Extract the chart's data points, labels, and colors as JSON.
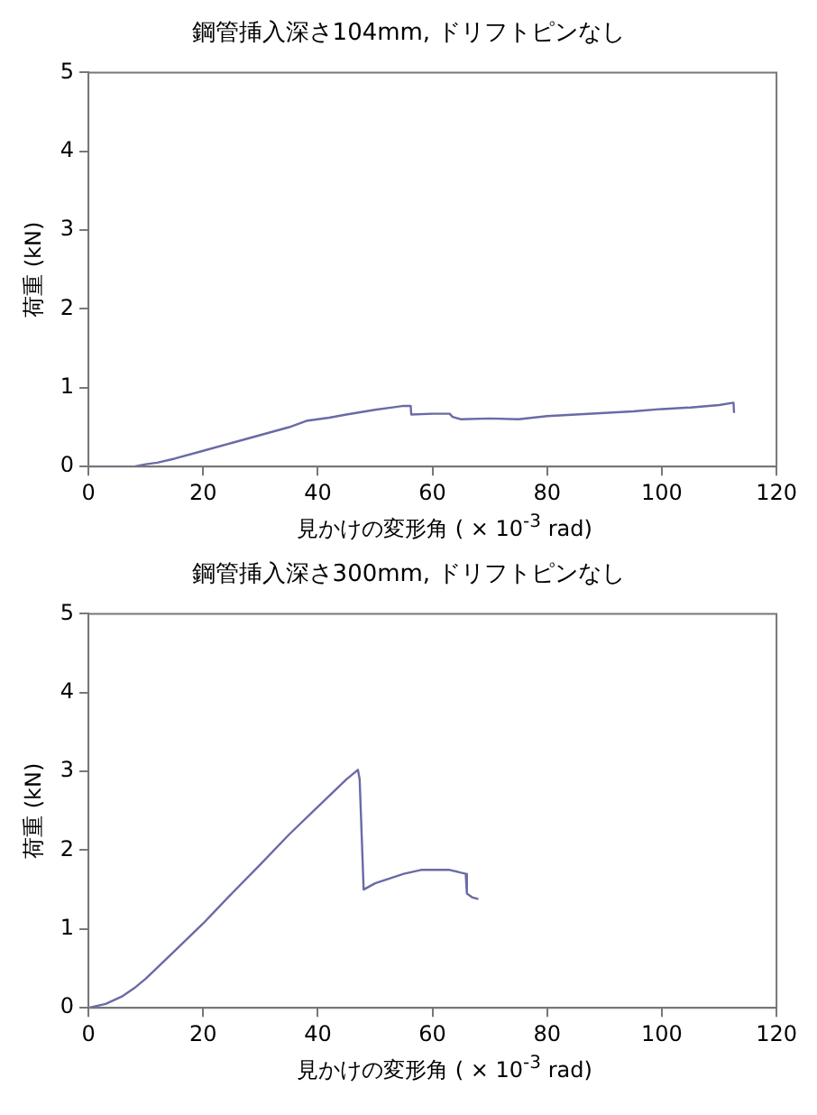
{
  "chart_data": [
    {
      "type": "line",
      "title": "鋼管挿入深さ104mm, ドリフトピンなし",
      "xlabel": "見かけの変形角 ( × 10$^{-3}$ rad)",
      "ylabel": "荷重 (kN)",
      "xlim": [
        0,
        120
      ],
      "xticks": [
        0,
        20,
        40,
        60,
        80,
        100,
        120
      ],
      "ylim": [
        0,
        5
      ],
      "yticks": [
        0,
        1,
        2,
        3,
        4,
        5
      ],
      "grid": false,
      "legend": false,
      "marker": "none",
      "series": [
        {
          "color": "#6a6aa6",
          "x": [
            0,
            8,
            10,
            12,
            15,
            20,
            25,
            30,
            35,
            38,
            42,
            45,
            50,
            53,
            55,
            56.2,
            56.3,
            60,
            63,
            63.5,
            65,
            70,
            75,
            80,
            85,
            90,
            95,
            100,
            105,
            110,
            112.5,
            112.6
          ],
          "values": [
            0,
            0,
            0.03,
            0.05,
            0.1,
            0.2,
            0.3,
            0.4,
            0.5,
            0.58,
            0.62,
            0.66,
            0.72,
            0.75,
            0.77,
            0.77,
            0.66,
            0.67,
            0.67,
            0.63,
            0.6,
            0.61,
            0.6,
            0.64,
            0.66,
            0.68,
            0.7,
            0.73,
            0.75,
            0.78,
            0.81,
            0.68
          ]
        }
      ]
    },
    {
      "type": "line",
      "title": "鋼管挿入深さ300mm, ドリフトピンなし",
      "xlabel": "見かけの変形角 ( × 10$^{-3}$ rad)",
      "ylabel": "荷重 (kN)",
      "xlim": [
        0,
        120
      ],
      "xticks": [
        0,
        20,
        40,
        60,
        80,
        100,
        120
      ],
      "ylim": [
        0,
        5
      ],
      "yticks": [
        0,
        1,
        2,
        3,
        4,
        5
      ],
      "grid": false,
      "legend": false,
      "marker": "none",
      "series": [
        {
          "color": "#6a6aa6",
          "x": [
            0,
            3,
            6,
            8,
            10,
            15,
            20,
            25,
            30,
            35,
            40,
            45,
            47,
            47.3,
            48,
            50,
            55,
            58,
            60,
            63,
            65.8,
            66,
            67,
            68
          ],
          "values": [
            0,
            0.05,
            0.15,
            0.25,
            0.37,
            0.72,
            1.07,
            1.45,
            1.82,
            2.2,
            2.55,
            2.9,
            3.02,
            2.9,
            1.5,
            1.58,
            1.7,
            1.75,
            1.75,
            1.75,
            1.7,
            1.45,
            1.4,
            1.38
          ]
        }
      ]
    }
  ]
}
